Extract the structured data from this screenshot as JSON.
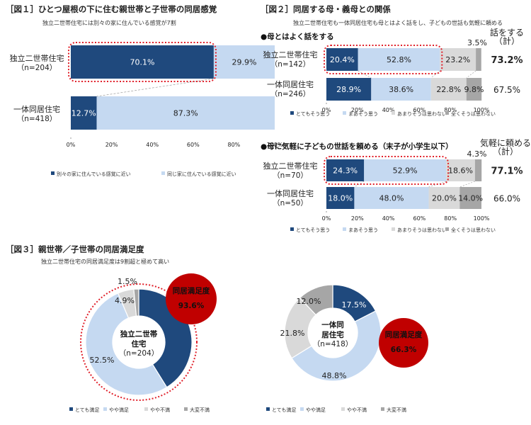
{
  "chart_data": [
    {
      "type": "bar",
      "title": "［図１］ひとつ屋根の下に住む親世帯と子世帯の同居感覚",
      "subtitle": "独立二世帯住宅には別々の家に住んでいる感覚が7割",
      "stacked": true,
      "orientation": "horizontal",
      "xlim": [
        0,
        100
      ],
      "ticks": [
        "0%",
        "20%",
        "40%",
        "60%",
        "80%",
        "100%"
      ],
      "categories": [
        {
          "name": "独立二世帯住宅",
          "n": "（n=204）"
        },
        {
          "name": "一体同居住宅",
          "n": "（n=418）"
        }
      ],
      "series": [
        {
          "name": "別々の家に住んでいる感覚に近い",
          "color": "#1f497d",
          "values": [
            70.1,
            12.7
          ],
          "labels": [
            "70.1%",
            "12.7%"
          ]
        },
        {
          "name": "同じ家に住んでいる感覚に近い",
          "color": "#c5d9f1",
          "values": [
            29.9,
            87.3
          ],
          "labels": [
            "29.9%",
            "87.3%"
          ]
        }
      ]
    },
    {
      "type": "bar",
      "title": "［図２］同居する母・義母との関係",
      "subtitle": "独立二世帯住宅も一体同居住宅も母とはよく話をし、子どもの世話も気軽に頼める",
      "stacked": true,
      "orientation": "horizontal",
      "xlim": [
        0,
        100
      ],
      "ticks": [
        "0%",
        "20%",
        "40%",
        "60%",
        "80%",
        "100%"
      ],
      "panels": [
        {
          "heading": "●母とはよく話をする",
          "total_header": "話をする（計）",
          "categories": [
            {
              "name": "独立二世帯住宅",
              "n": "（n=142）",
              "total": "73.2%",
              "total_bold": true
            },
            {
              "name": "一体同居住宅",
              "n": "（n=246）",
              "total": "67.5%",
              "total_bold": false
            }
          ],
          "series": [
            {
              "name": "とてもそう思う",
              "color": "#1f497d",
              "values": [
                20.4,
                28.9
              ],
              "labels": [
                "20.4%",
                "28.9%"
              ]
            },
            {
              "name": "まあそう思う",
              "color": "#c5d9f1",
              "values": [
                52.8,
                38.6
              ],
              "labels": [
                "52.8%",
                "38.6%"
              ]
            },
            {
              "name": "あまりそうは思わない",
              "color": "#d9d9d9",
              "values": [
                23.2,
                22.8
              ],
              "labels": [
                "23.2%",
                "22.8%"
              ]
            },
            {
              "name": "全くそうは思わない",
              "color": "#a6a6a6",
              "values": [
                3.5,
                9.8
              ],
              "labels": [
                "3.5%",
                "9.8%"
              ]
            }
          ]
        },
        {
          "heading": "●母に気軽に子どもの世話を頼める（末子が小学生以下）",
          "total_header": "気軽に頼める（計）",
          "categories": [
            {
              "name": "独立二世帯住宅",
              "n": "（n=70）",
              "total": "77.1%",
              "total_bold": true
            },
            {
              "name": "一体同居住宅",
              "n": "（n=50）",
              "total": "66.0%",
              "total_bold": false
            }
          ],
          "series": [
            {
              "name": "とてもそう思う",
              "color": "#1f497d",
              "values": [
                24.3,
                18.0
              ],
              "labels": [
                "24.3%",
                "18.0%"
              ]
            },
            {
              "name": "まあそう思う",
              "color": "#c5d9f1",
              "values": [
                52.9,
                48.0
              ],
              "labels": [
                "52.9%",
                "48.0%"
              ]
            },
            {
              "name": "あまりそうは思わない",
              "color": "#d9d9d9",
              "values": [
                18.6,
                20.0
              ],
              "labels": [
                "18.6%",
                "20.0%"
              ]
            },
            {
              "name": "全くそうは思わない",
              "color": "#a6a6a6",
              "values": [
                4.3,
                14.0
              ],
              "labels": [
                "4.3%",
                "14.0%"
              ]
            }
          ]
        }
      ]
    },
    {
      "type": "pie",
      "title": "［図３］親世帯／子世帯の同居満足度",
      "subtitle": "独立二世帯住宅の同居満足度は9割超と極めて高い",
      "legend": [
        "とても満足",
        "やや満足",
        "やや不満",
        "大変不満"
      ],
      "colors": [
        "#1f497d",
        "#c5d9f1",
        "#d9d9d9",
        "#a6a6a6"
      ],
      "pies": [
        {
          "center_label": "独立二世帯住宅",
          "n": "（n=204）",
          "values": [
            41.2,
            52.5,
            4.9,
            1.5
          ],
          "labels": [
            "41.2%",
            "52.5%",
            "4.9%",
            "1.5%"
          ],
          "badge_title": "同居満足度",
          "badge_value": "93.6%"
        },
        {
          "center_label": "一体同居住宅",
          "n": "（n=418）",
          "values": [
            17.5,
            48.8,
            21.8,
            12.0
          ],
          "labels": [
            "17.5%",
            "48.8%",
            "21.8%",
            "12.0%"
          ],
          "badge_title": "同居満足度",
          "badge_value": "66.3%"
        }
      ]
    }
  ]
}
